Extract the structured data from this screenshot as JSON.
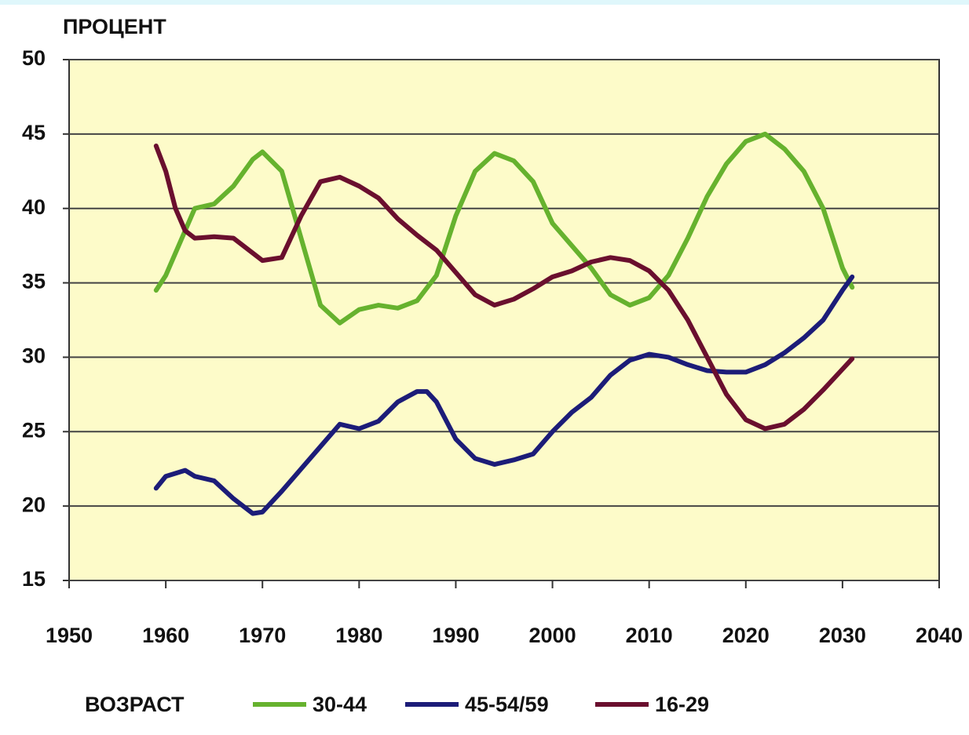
{
  "chart_data": {
    "type": "line",
    "ylabel": "ПРОЦЕНТ",
    "legend_title": "ВОЗРАСТ",
    "xlim": [
      1950,
      2040
    ],
    "xticks": [
      1950,
      1960,
      1970,
      1980,
      1990,
      2000,
      2010,
      2020,
      2030,
      2040
    ],
    "ylim": [
      15,
      50
    ],
    "yticks": [
      15,
      20,
      25,
      30,
      35,
      40,
      45,
      50
    ],
    "grid": true,
    "legend": "bottom",
    "series": [
      {
        "name": "30-44",
        "color": "#66b22e",
        "x": [
          1959,
          1960,
          1962,
          1963,
          1965,
          1967,
          1969,
          1970,
          1972,
          1974,
          1976,
          1978,
          1980,
          1982,
          1984,
          1986,
          1988,
          1990,
          1992,
          1994,
          1996,
          1998,
          2000,
          2002,
          2004,
          2006,
          2008,
          2010,
          2012,
          2014,
          2016,
          2018,
          2020,
          2022,
          2024,
          2026,
          2028,
          2030,
          2031
        ],
        "values": [
          34.5,
          35.5,
          38.5,
          40,
          40.3,
          41.5,
          43.3,
          43.8,
          42.5,
          38,
          33.5,
          32.3,
          33.2,
          33.5,
          33.3,
          33.8,
          35.5,
          39.5,
          42.5,
          43.7,
          43.2,
          41.8,
          39,
          37.5,
          36,
          34.2,
          33.5,
          34,
          35.5,
          38,
          40.8,
          43,
          44.5,
          45,
          44,
          42.5,
          40,
          36,
          34.7
        ]
      },
      {
        "name": "45-54/59",
        "color": "#1c1c78",
        "x": [
          1959,
          1960,
          1962,
          1963,
          1965,
          1967,
          1969,
          1970,
          1972,
          1974,
          1976,
          1978,
          1980,
          1982,
          1984,
          1986,
          1987,
          1988,
          1990,
          1992,
          1994,
          1996,
          1998,
          2000,
          2002,
          2004,
          2006,
          2008,
          2010,
          2012,
          2014,
          2016,
          2018,
          2020,
          2022,
          2024,
          2026,
          2028,
          2030,
          2031
        ],
        "values": [
          21.2,
          22,
          22.4,
          22,
          21.7,
          20.5,
          19.5,
          19.6,
          21,
          22.5,
          24,
          25.5,
          25.2,
          25.7,
          27,
          27.7,
          27.7,
          27,
          24.5,
          23.2,
          22.8,
          23.1,
          23.5,
          25,
          26.3,
          27.3,
          28.8,
          29.8,
          30.2,
          30,
          29.5,
          29.1,
          29,
          29,
          29.5,
          30.3,
          31.3,
          32.5,
          34.5,
          35.4
        ]
      },
      {
        "name": "16-29",
        "color": "#6a0f2e",
        "x": [
          1959,
          1960,
          1961,
          1962,
          1963,
          1965,
          1967,
          1969,
          1970,
          1972,
          1974,
          1976,
          1978,
          1980,
          1982,
          1984,
          1986,
          1988,
          1990,
          1992,
          1994,
          1996,
          1998,
          2000,
          2002,
          2004,
          2006,
          2008,
          2010,
          2012,
          2014,
          2016,
          2018,
          2020,
          2022,
          2024,
          2026,
          2028,
          2030,
          2031
        ],
        "values": [
          44.2,
          42.5,
          40,
          38.5,
          38,
          38.1,
          38,
          37,
          36.5,
          36.7,
          39.5,
          41.8,
          42.1,
          41.5,
          40.7,
          39.3,
          38.2,
          37.2,
          35.7,
          34.2,
          33.5,
          33.9,
          34.6,
          35.4,
          35.8,
          36.4,
          36.7,
          36.5,
          35.8,
          34.5,
          32.5,
          30,
          27.5,
          25.8,
          25.2,
          25.5,
          26.5,
          27.8,
          29.2,
          29.9
        ]
      }
    ]
  }
}
